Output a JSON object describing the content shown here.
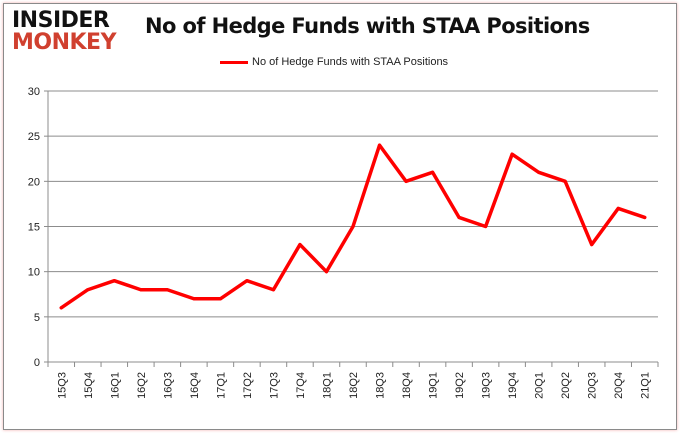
{
  "logo": {
    "line1": "INSIDER",
    "line2": "MONKEY"
  },
  "chart_data": {
    "type": "line",
    "title": "No of Hedge Funds with STAA Positions",
    "xlabel": "",
    "ylabel": "",
    "ylim": [
      0,
      30
    ],
    "yticks": [
      0,
      5,
      10,
      15,
      20,
      25,
      30
    ],
    "grid": true,
    "legend_position": "top-center",
    "categories": [
      "15Q3",
      "15Q4",
      "16Q1",
      "16Q2",
      "16Q3",
      "16Q4",
      "17Q1",
      "17Q2",
      "17Q3",
      "17Q4",
      "18Q1",
      "18Q2",
      "18Q3",
      "18Q4",
      "19Q1",
      "19Q2",
      "19Q3",
      "19Q4",
      "20Q1",
      "20Q2",
      "20Q3",
      "20Q4",
      "21Q1"
    ],
    "series": [
      {
        "name": "No of Hedge Funds with STAA Positions",
        "color": "#ff0000",
        "values": [
          6,
          8,
          9,
          8,
          8,
          7,
          7,
          9,
          8,
          13,
          10,
          15,
          24,
          20,
          21,
          16,
          15,
          23,
          21,
          20,
          13,
          17,
          16
        ]
      }
    ]
  }
}
